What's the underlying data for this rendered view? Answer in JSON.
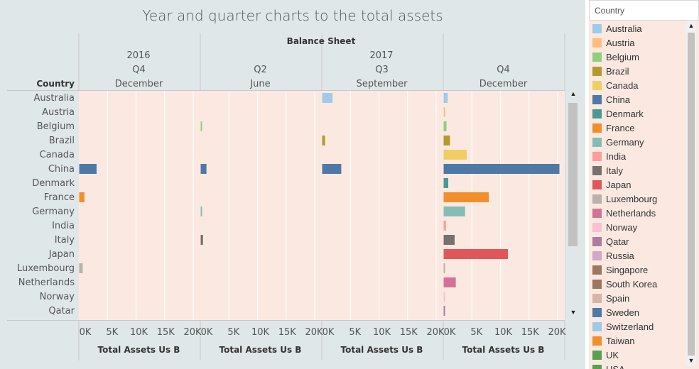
{
  "title": "Year and quarter charts to the total assets",
  "header": {
    "section_label": "Balance Sheet",
    "row_dim_label": "Country",
    "years": [
      "2016",
      "2017"
    ],
    "panels": [
      {
        "quarter": "Q4",
        "month": "December"
      },
      {
        "quarter": "Q2",
        "month": "June"
      },
      {
        "quarter": "Q3",
        "month": "September"
      },
      {
        "quarter": "Q4",
        "month": "December"
      }
    ],
    "measure_label": "Total Assets Us B"
  },
  "chart_data": {
    "type": "bar",
    "orientation": "horizontal",
    "title": "Year and quarter charts to the total assets",
    "categories": [
      "Australia",
      "Austria",
      "Belgium",
      "Brazil",
      "Canada",
      "China",
      "Denmark",
      "France",
      "Germany",
      "India",
      "Italy",
      "Japan",
      "Luxembourg",
      "Netherlands",
      "Norway",
      "Qatar"
    ],
    "xlabel": "Total Assets Us B",
    "xlim": [
      0,
      20000
    ],
    "x_ticks": [
      "0K",
      "5K",
      "10K",
      "15K",
      "20K"
    ],
    "grid": true,
    "panels": [
      {
        "year": "2016",
        "quarter": "Q4",
        "month": "December",
        "values": [
          0,
          0,
          0,
          0,
          0,
          3000,
          0,
          900,
          0,
          0,
          0,
          0,
          600,
          0,
          0,
          0
        ]
      },
      {
        "year": "2016",
        "quarter": "Q2",
        "month": "June",
        "values": [
          0,
          0,
          150,
          0,
          0,
          1000,
          0,
          0,
          150,
          0,
          400,
          0,
          0,
          0,
          0,
          0
        ]
      },
      {
        "year": "2017",
        "quarter": "Q3",
        "month": "September",
        "values": [
          1800,
          0,
          0,
          500,
          0,
          3300,
          0,
          0,
          0,
          0,
          0,
          0,
          0,
          0,
          0,
          0
        ]
      },
      {
        "year": "2017",
        "quarter": "Q4",
        "month": "December",
        "values": [
          700,
          150,
          500,
          1100,
          4000,
          20000,
          800,
          7800,
          3700,
          400,
          1900,
          11100,
          150,
          2100,
          250,
          150
        ]
      }
    ],
    "colors": {
      "Australia": "#a0cbe8",
      "Austria": "#ffbe7d",
      "Belgium": "#8cd17d",
      "Brazil": "#b6992d",
      "Canada": "#f1ce63",
      "China": "#4e79a7",
      "Denmark": "#499894",
      "France": "#f28e2b",
      "Germany": "#86bcb6",
      "India": "#ff9d9a",
      "Italy": "#79706e",
      "Japan": "#e15759",
      "Luxembourg": "#bab0ac",
      "Netherlands": "#d37295",
      "Norway": "#fabfd2",
      "Qatar": "#b07aa1"
    }
  },
  "legend": {
    "title": "Country",
    "items": [
      {
        "label": "Australia",
        "color": "#a0cbe8"
      },
      {
        "label": "Austria",
        "color": "#ffbe7d"
      },
      {
        "label": "Belgium",
        "color": "#8cd17d"
      },
      {
        "label": "Brazil",
        "color": "#b6992d"
      },
      {
        "label": "Canada",
        "color": "#f1ce63"
      },
      {
        "label": "China",
        "color": "#4e79a7"
      },
      {
        "label": "Denmark",
        "color": "#499894"
      },
      {
        "label": "France",
        "color": "#f28e2b"
      },
      {
        "label": "Germany",
        "color": "#86bcb6"
      },
      {
        "label": "India",
        "color": "#ff9d9a"
      },
      {
        "label": "Italy",
        "color": "#79706e"
      },
      {
        "label": "Japan",
        "color": "#e15759"
      },
      {
        "label": "Luxembourg",
        "color": "#bab0ac"
      },
      {
        "label": "Netherlands",
        "color": "#d37295"
      },
      {
        "label": "Norway",
        "color": "#fabfd2"
      },
      {
        "label": "Qatar",
        "color": "#b07aa1"
      },
      {
        "label": "Russia",
        "color": "#d4a6c8"
      },
      {
        "label": "Singapore",
        "color": "#9d7660"
      },
      {
        "label": "South Korea",
        "color": "#9d7660"
      },
      {
        "label": "Spain",
        "color": "#d7b5a6"
      },
      {
        "label": "Sweden",
        "color": "#4e79a7"
      },
      {
        "label": "Switzerland",
        "color": "#a0cbe8"
      },
      {
        "label": "Taiwan",
        "color": "#f28e2b"
      },
      {
        "label": "UK",
        "color": "#59a14f"
      },
      {
        "label": "USA",
        "color": "#59a14f"
      }
    ]
  },
  "colors": {
    "pane_bg": "#fbe9e1",
    "panel_bg": "#e0e7e9"
  }
}
